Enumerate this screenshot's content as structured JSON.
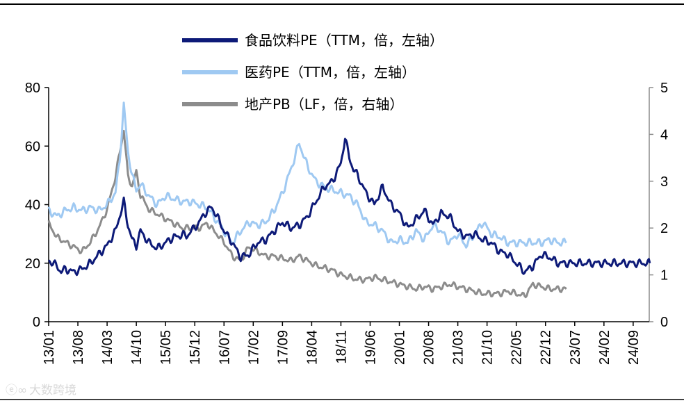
{
  "chart_data": {
    "type": "line",
    "title": "",
    "categories": [
      "13/01",
      "13/08",
      "14/03",
      "14/10",
      "15/05",
      "15/12",
      "16/07",
      "17/02",
      "17/09",
      "18/04",
      "18/11",
      "19/06",
      "20/01",
      "20/08",
      "21/03",
      "21/10",
      "22/05",
      "22/12",
      "23/07",
      "24/02",
      "24/09"
    ],
    "left_axis": {
      "ticks": [
        "0",
        "20",
        "40",
        "60",
        "80"
      ],
      "range": [
        0,
        80
      ]
    },
    "right_axis": {
      "ticks": [
        "0",
        "1",
        "2",
        "3",
        "4",
        "5"
      ],
      "range": [
        0,
        5
      ]
    },
    "series": [
      {
        "name": "食品饮料PE（TTM，倍，左轴）",
        "axis": "left",
        "color": "#0d1a78",
        "width": 4,
        "x": [
          0,
          2,
          3,
          4,
          6,
          8,
          10,
          12,
          14,
          16,
          17,
          18,
          19,
          20,
          21,
          22,
          24,
          26,
          28,
          30,
          31,
          32,
          33,
          34,
          35,
          36,
          37,
          38,
          39,
          40,
          41,
          42,
          44,
          46,
          48,
          50,
          52,
          54,
          56,
          58,
          60,
          62,
          64,
          66,
          68,
          70,
          71,
          72,
          73,
          74,
          76,
          78,
          80,
          82,
          84,
          86,
          88,
          90,
          92,
          94,
          96,
          98,
          100,
          102,
          104,
          106,
          108,
          110,
          112,
          114,
          116,
          118,
          120,
          122,
          124,
          126,
          128,
          130,
          132,
          134,
          136,
          138,
          140,
          142,
          144
        ],
        "y": [
          21,
          19,
          17,
          18,
          17,
          18,
          20,
          23,
          26,
          31,
          36,
          41,
          33,
          28,
          26,
          31,
          27,
          25,
          27,
          29,
          29,
          30,
          29,
          31,
          32,
          34,
          36,
          38,
          39,
          37,
          34,
          31,
          27,
          22,
          23,
          27,
          28,
          31,
          34,
          32,
          33,
          36,
          41,
          46,
          48,
          54,
          63,
          56,
          52,
          50,
          44,
          40,
          46,
          40,
          37,
          32,
          35,
          38,
          33,
          37,
          36,
          31,
          29,
          30,
          28,
          27,
          24,
          23,
          20,
          17,
          19,
          23,
          22,
          20,
          20,
          20,
          20,
          20,
          20,
          20,
          20,
          20,
          20,
          20,
          20
        ],
        "label_values": []
      },
      {
        "name": "医药PE（TTM，倍，左轴）",
        "axis": "left",
        "color": "#9fc9f2",
        "width": 4,
        "x": [
          0,
          2,
          4,
          6,
          8,
          10,
          12,
          14,
          16,
          17,
          18,
          19,
          20,
          21,
          22,
          24,
          26,
          28,
          30,
          32,
          34,
          36,
          38,
          40,
          42,
          44,
          46,
          48,
          50,
          52,
          54,
          56,
          58,
          60,
          62,
          64,
          66,
          68,
          70,
          72,
          74,
          76,
          78,
          80,
          82,
          84,
          86,
          88,
          90,
          92,
          94,
          96,
          98,
          100,
          102,
          104,
          106,
          108,
          110,
          112,
          114,
          116,
          118,
          120,
          122,
          124
        ],
        "y": [
          38,
          36,
          38,
          39,
          38,
          39,
          38,
          40,
          44,
          55,
          74,
          58,
          50,
          45,
          47,
          43,
          40,
          43,
          42,
          41,
          41,
          40,
          39,
          35,
          31,
          27,
          31,
          34,
          33,
          34,
          38,
          44,
          52,
          61,
          53,
          48,
          46,
          45,
          44,
          43,
          40,
          34,
          33,
          31,
          27,
          28,
          27,
          31,
          28,
          33,
          31,
          27,
          30,
          26,
          30,
          34,
          30,
          29,
          27,
          27,
          27,
          27,
          27,
          28,
          27,
          27
        ],
        "label_values": []
      },
      {
        "name": "地产PB（LF，倍，右轴）",
        "axis": "right",
        "color": "#8c8c8c",
        "width": 4,
        "x": [
          0,
          2,
          4,
          6,
          8,
          10,
          12,
          14,
          16,
          17,
          18,
          19,
          20,
          21,
          22,
          24,
          26,
          28,
          30,
          32,
          34,
          36,
          38,
          40,
          42,
          44,
          46,
          48,
          50,
          52,
          54,
          56,
          58,
          60,
          62,
          64,
          66,
          68,
          70,
          72,
          74,
          76,
          78,
          80,
          82,
          84,
          86,
          88,
          90,
          92,
          94,
          96,
          98,
          100,
          102,
          104,
          106,
          108,
          110,
          112,
          114,
          116,
          118,
          120,
          122,
          124
        ],
        "y": [
          2.1,
          1.8,
          1.7,
          1.6,
          1.5,
          1.7,
          2.0,
          2.4,
          3.1,
          3.6,
          4.1,
          3.1,
          2.9,
          3.2,
          2.7,
          2.4,
          2.3,
          2.2,
          2.1,
          2.0,
          2.0,
          2.0,
          2.1,
          1.9,
          1.7,
          1.4,
          1.3,
          1.6,
          1.5,
          1.4,
          1.4,
          1.35,
          1.3,
          1.4,
          1.3,
          1.2,
          1.15,
          1.1,
          1.0,
          0.95,
          0.9,
          0.9,
          0.95,
          0.9,
          0.85,
          0.8,
          0.75,
          0.7,
          0.75,
          0.7,
          0.75,
          0.8,
          0.75,
          0.7,
          0.65,
          0.6,
          0.6,
          0.6,
          0.65,
          0.6,
          0.55,
          0.8,
          0.75,
          0.7,
          0.7,
          0.7
        ],
        "label_values": []
      }
    ],
    "legend_position": "top-center",
    "grid": false
  },
  "watermark": "大数跨境"
}
